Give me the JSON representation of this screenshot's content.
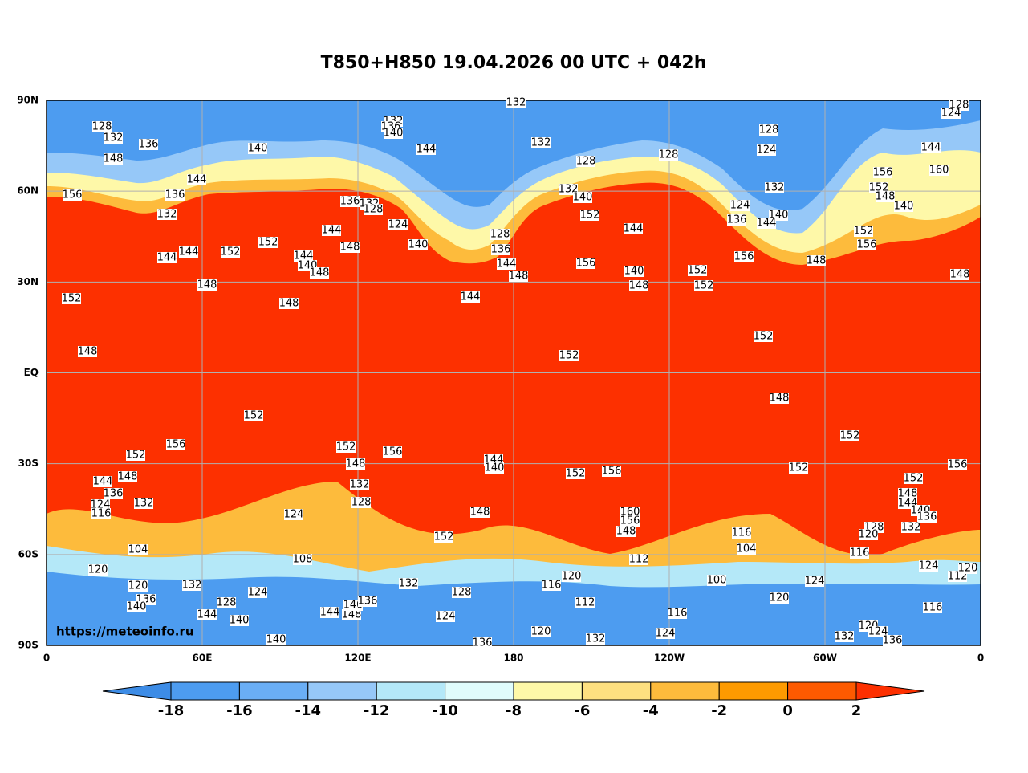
{
  "title": "T850+H850 19.04.2026 00 UTC + 042h",
  "watermark": "https://meteoinfo.ru",
  "x_axis": [
    "0",
    "60E",
    "120E",
    "180",
    "120W",
    "60W",
    "0"
  ],
  "y_axis": [
    "90N",
    "60N",
    "30N",
    "EQ",
    "30S",
    "60S",
    "90S"
  ],
  "colorbar": {
    "levels": [
      -18,
      -16,
      -14,
      -12,
      -10,
      -8,
      -6,
      -4,
      -2,
      0,
      2
    ],
    "colors": [
      "#3d8ce6",
      "#4d9cf0",
      "#6aaef5",
      "#96c8f8",
      "#b4e8f8",
      "#e0fcfc",
      "#fef8a8",
      "#fee080",
      "#fdbb3c",
      "#fd9a00",
      "#fd5a00",
      "#fd3000"
    ]
  },
  "contour_labels": [
    132,
    128,
    124,
    128,
    132,
    136,
    132,
    136,
    140,
    140,
    144,
    132,
    128,
    128,
    128,
    124,
    144,
    156,
    160,
    148,
    156,
    144,
    136,
    132,
    136,
    132,
    128,
    124,
    132,
    140,
    152,
    124,
    136,
    132,
    140,
    144,
    152,
    148,
    140,
    152,
    156,
    144,
    156,
    156,
    148,
    148,
    144,
    152,
    152,
    144,
    140,
    148,
    148,
    140,
    128,
    136,
    144,
    148,
    140,
    148,
    152,
    152,
    144,
    144,
    148,
    152,
    144,
    148,
    148,
    152,
    152,
    148,
    152,
    156,
    152,
    152,
    156,
    152,
    144,
    140,
    152,
    156,
    152,
    156,
    148,
    148,
    132,
    128,
    152,
    148,
    144,
    140,
    136,
    144,
    136,
    124,
    116,
    132,
    148,
    124,
    160,
    156,
    148,
    128,
    120,
    132,
    152,
    116,
    104,
    104,
    108,
    112,
    116,
    120,
    124,
    112,
    120,
    100,
    120,
    116,
    132,
    128,
    132,
    120,
    136,
    140,
    128,
    124,
    120,
    124,
    112,
    116,
    116,
    144,
    140,
    144,
    148,
    140,
    136,
    124,
    120,
    132,
    120,
    124,
    132,
    136,
    140,
    136,
    124
  ]
}
